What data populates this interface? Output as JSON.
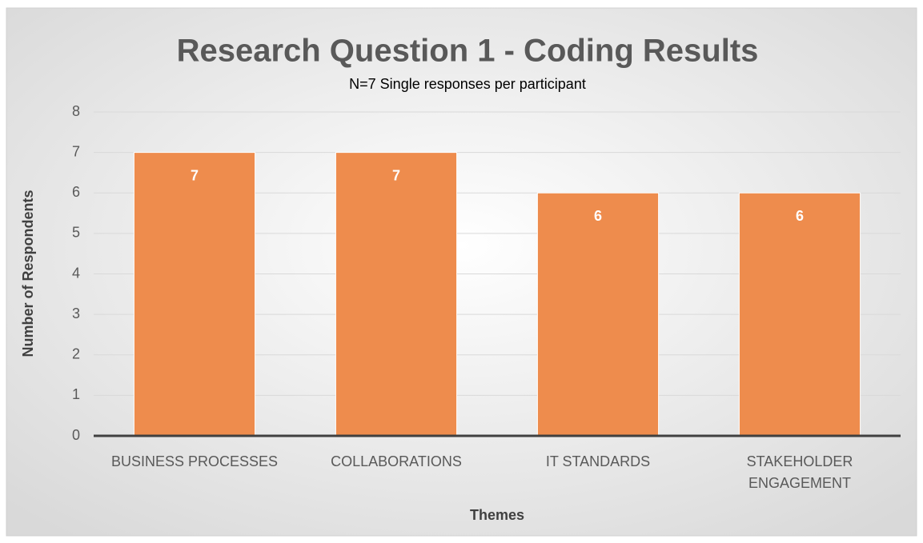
{
  "chart_data": {
    "type": "bar",
    "title": "Research Question 1 - Coding Results",
    "subtitle": "N=7 Single responses per participant",
    "x_label": "Themes",
    "y_label": "Number of Respondents",
    "categories": [
      "BUSINESS PROCESSES",
      "COLLABORATIONS",
      "IT STANDARDS",
      "STAKEHOLDER ENGAGEMENT"
    ],
    "values": [
      7,
      7,
      6,
      6
    ],
    "color": "#ee8c4d",
    "ylim": [
      0,
      8
    ],
    "yticks": [
      0,
      1,
      2,
      3,
      4,
      5,
      6,
      7,
      8
    ],
    "grid": true
  }
}
